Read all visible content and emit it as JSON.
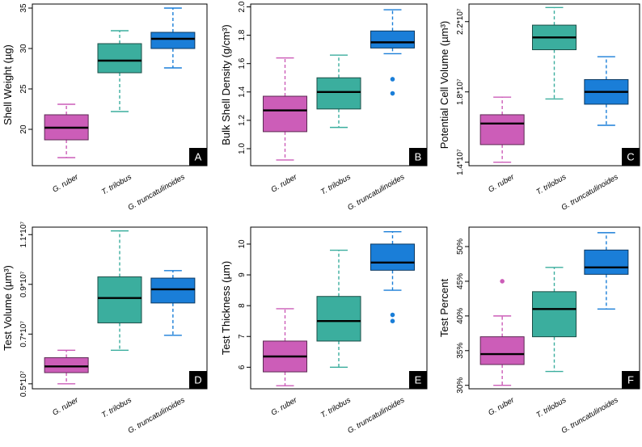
{
  "chart_data": [
    {
      "type": "boxplot",
      "panel_label": "A",
      "ylabel": "Shell Weight (µg)",
      "ylim": [
        15.5,
        35.5
      ],
      "ticks": [
        {
          "value": 20,
          "label": "20"
        },
        {
          "value": 25,
          "label": "25"
        },
        {
          "value": 30,
          "label": "30"
        },
        {
          "value": 35,
          "label": "35"
        }
      ],
      "categories": [
        "G. ruber",
        "T. trilobus",
        "G. truncatulinoides"
      ],
      "colors": [
        "#CC5DB8",
        "#3BAE9E",
        "#1A7ED8"
      ],
      "boxes": [
        {
          "whisker_low": 16.5,
          "q1": 18.7,
          "median": 20.2,
          "q3": 21.8,
          "whisker_high": 23.1,
          "outliers": []
        },
        {
          "whisker_low": 22.2,
          "q1": 27.0,
          "median": 28.5,
          "q3": 30.6,
          "whisker_high": 32.2,
          "outliers": []
        },
        {
          "whisker_low": 27.6,
          "q1": 30.0,
          "median": 31.2,
          "q3": 32.0,
          "whisker_high": 35.0,
          "outliers": []
        }
      ]
    },
    {
      "type": "boxplot",
      "panel_label": "B",
      "ylabel": "Bulk Shell Density (g/cm³)",
      "ylim": [
        0.88,
        2.02
      ],
      "ticks": [
        {
          "value": 1.0,
          "label": "1.0"
        },
        {
          "value": 1.2,
          "label": "1.2"
        },
        {
          "value": 1.4,
          "label": "1.4"
        },
        {
          "value": 1.6,
          "label": "1.6"
        },
        {
          "value": 1.8,
          "label": "1.8"
        },
        {
          "value": 2.0,
          "label": "2.0"
        }
      ],
      "categories": [
        "G. ruber",
        "T. trilobus",
        "G. truncatulinoides"
      ],
      "colors": [
        "#CC5DB8",
        "#3BAE9E",
        "#1A7ED8"
      ],
      "boxes": [
        {
          "whisker_low": 0.92,
          "q1": 1.12,
          "median": 1.27,
          "q3": 1.37,
          "whisker_high": 1.64,
          "outliers": []
        },
        {
          "whisker_low": 1.15,
          "q1": 1.28,
          "median": 1.4,
          "q3": 1.5,
          "whisker_high": 1.66,
          "outliers": []
        },
        {
          "whisker_low": 1.67,
          "q1": 1.71,
          "median": 1.75,
          "q3": 1.83,
          "whisker_high": 1.98,
          "outliers": [
            1.49,
            1.39
          ]
        }
      ]
    },
    {
      "type": "boxplot",
      "panel_label": "C",
      "ylabel": "Potential Cell Volume (µm³)",
      "ylim": [
        13800000,
        23000000
      ],
      "ticks": [
        {
          "value": 14000000,
          "label": "1.4*10⁷"
        },
        {
          "value": 18000000,
          "label": "1.8*10⁷"
        },
        {
          "value": 22000000,
          "label": "2.2*10⁷"
        }
      ],
      "categories": [
        "G. ruber",
        "T. trilobus",
        "G. truncatulinoides"
      ],
      "colors": [
        "#CC5DB8",
        "#3BAE9E",
        "#1A7ED8"
      ],
      "boxes": [
        {
          "whisker_low": 14000000,
          "q1": 15000000,
          "median": 16200000,
          "q3": 16700000,
          "whisker_high": 17700000,
          "outliers": []
        },
        {
          "whisker_low": 17600000,
          "q1": 20400000,
          "median": 21100000,
          "q3": 21800000,
          "whisker_high": 22800000,
          "outliers": []
        },
        {
          "whisker_low": 16100000,
          "q1": 17300000,
          "median": 18000000,
          "q3": 18700000,
          "whisker_high": 20000000,
          "outliers": []
        }
      ]
    },
    {
      "type": "boxplot",
      "panel_label": "D",
      "ylabel": "Test Volume (µm³)",
      "ylim": [
        4800000,
        11300000
      ],
      "ticks": [
        {
          "value": 5000000,
          "label": "0.5*10⁷"
        },
        {
          "value": 7000000,
          "label": "0.7*10⁷"
        },
        {
          "value": 9000000,
          "label": "0.9*10⁷"
        },
        {
          "value": 11000000,
          "label": "1.1*10⁷"
        }
      ],
      "categories": [
        "G. ruber",
        "T. trilobus",
        "G. truncatulinoides"
      ],
      "colors": [
        "#CC5DB8",
        "#3BAE9E",
        "#1A7ED8"
      ],
      "boxes": [
        {
          "whisker_low": 5000000,
          "q1": 5450000,
          "median": 5700000,
          "q3": 6050000,
          "whisker_high": 6350000,
          "outliers": []
        },
        {
          "whisker_low": 6350000,
          "q1": 7450000,
          "median": 8450000,
          "q3": 9300000,
          "whisker_high": 11150000,
          "outliers": []
        },
        {
          "whisker_low": 6950000,
          "q1": 8250000,
          "median": 8800000,
          "q3": 9250000,
          "whisker_high": 9550000,
          "outliers": []
        }
      ]
    },
    {
      "type": "boxplot",
      "panel_label": "E",
      "ylabel": "Test Thickness (µm)",
      "ylim": [
        5.3,
        10.55
      ],
      "ticks": [
        {
          "value": 6,
          "label": "6"
        },
        {
          "value": 7,
          "label": "7"
        },
        {
          "value": 8,
          "label": "8"
        },
        {
          "value": 9,
          "label": "9"
        },
        {
          "value": 10,
          "label": "10"
        }
      ],
      "categories": [
        "G. ruber",
        "T. trilobus",
        "G. truncatulinoides"
      ],
      "colors": [
        "#CC5DB8",
        "#3BAE9E",
        "#1A7ED8"
      ],
      "boxes": [
        {
          "whisker_low": 5.4,
          "q1": 5.85,
          "median": 6.35,
          "q3": 6.85,
          "whisker_high": 7.9,
          "outliers": []
        },
        {
          "whisker_low": 6.0,
          "q1": 6.85,
          "median": 7.5,
          "q3": 8.3,
          "whisker_high": 9.8,
          "outliers": []
        },
        {
          "whisker_low": 8.5,
          "q1": 9.15,
          "median": 9.4,
          "q3": 10.0,
          "whisker_high": 10.4,
          "outliers": [
            7.7,
            7.5
          ]
        }
      ]
    },
    {
      "type": "boxplot",
      "panel_label": "F",
      "ylabel": "Test Percent",
      "ylim": [
        29.5,
        52.8
      ],
      "ticks": [
        {
          "value": 30,
          "label": "30%"
        },
        {
          "value": 35,
          "label": "35%"
        },
        {
          "value": 40,
          "label": "40%"
        },
        {
          "value": 45,
          "label": "45%"
        },
        {
          "value": 50,
          "label": "50%"
        }
      ],
      "categories": [
        "G. ruber",
        "T. trilobus",
        "G. truncatulinoides"
      ],
      "colors": [
        "#CC5DB8",
        "#3BAE9E",
        "#1A7ED8"
      ],
      "boxes": [
        {
          "whisker_low": 30,
          "q1": 33,
          "median": 34.5,
          "q3": 37,
          "whisker_high": 40,
          "outliers": [
            45
          ]
        },
        {
          "whisker_low": 32,
          "q1": 37,
          "median": 41,
          "q3": 43.5,
          "whisker_high": 47,
          "outliers": []
        },
        {
          "whisker_low": 41,
          "q1": 46,
          "median": 47,
          "q3": 49.5,
          "whisker_high": 52,
          "outliers": []
        }
      ]
    }
  ]
}
